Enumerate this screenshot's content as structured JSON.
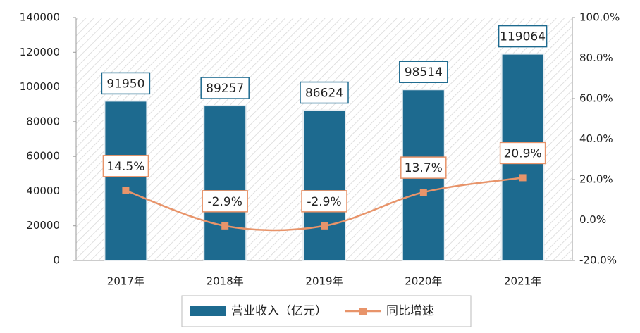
{
  "chart_data": {
    "type": "bar",
    "categories": [
      "2017年",
      "2018年",
      "2019年",
      "2020年",
      "2021年"
    ],
    "series": [
      {
        "name": "营业收入（亿元）",
        "color": "#1d6a8f",
        "values": [
          91950,
          89257,
          86624,
          98514,
          119064
        ]
      },
      {
        "name": "同比增速",
        "type": "line",
        "axis": "y2",
        "color": "#e8946a",
        "values": [
          14.5,
          -2.9,
          -2.9,
          13.7,
          20.9
        ],
        "value_labels": [
          "14.5%",
          "-2.9%",
          "-2.9%",
          "13.7%",
          "20.9%"
        ]
      }
    ],
    "ylim": [
      0,
      140000
    ],
    "yticks": [
      0,
      20000,
      40000,
      60000,
      80000,
      100000,
      120000,
      140000
    ],
    "y2lim": [
      -20,
      100
    ],
    "y2ticks": [
      {
        "value": -20,
        "label": "-20.0%"
      },
      {
        "value": 0,
        "label": "0.0%"
      },
      {
        "value": 20,
        "label": "20.0%"
      },
      {
        "value": 40,
        "label": "40.0%"
      },
      {
        "value": 60,
        "label": "60.0%"
      },
      {
        "value": 80,
        "label": "80.0%"
      },
      {
        "value": 100,
        "label": "100.0%"
      }
    ],
    "legend": "bottom"
  }
}
